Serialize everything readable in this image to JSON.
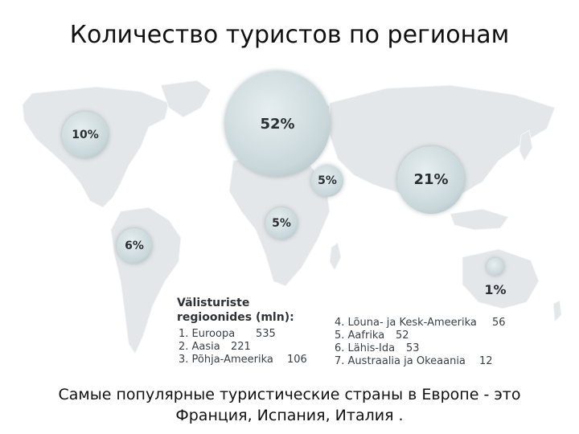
{
  "title": "Количество туристов по регионам",
  "colors": {
    "land": "#e4e7e9",
    "bubble_light": "#e6eef0",
    "bubble_dark": "#9fb3b8",
    "text": "#2a2f33"
  },
  "regions": [
    {
      "name": "Euroopa",
      "percent": "52%",
      "share": 52
    },
    {
      "name": "Aasia",
      "percent": "21%",
      "share": 21
    },
    {
      "name": "Põhja-Ameerika",
      "percent": "10%",
      "share": 10
    },
    {
      "name": "Lõuna- ja Kesk-Ameerika",
      "percent": "6%",
      "share": 6
    },
    {
      "name": "Aafrika",
      "percent": "5%",
      "share": 5
    },
    {
      "name": "Lähis-Ida",
      "percent": "5%",
      "share": 5
    },
    {
      "name": "Austraalia ja Okeaania",
      "percent": "1%",
      "share": 1
    }
  ],
  "legend": {
    "title_line1": "Välisturiste",
    "title_line2": "regioonides (mln):",
    "items": [
      {
        "label": "1. Euroopa",
        "value": "535"
      },
      {
        "label": "2. Aasia",
        "value": "221"
      },
      {
        "label": "3. Põhja-Ameerika",
        "value": "106"
      },
      {
        "label": "4. Lõuna- ja Kesk-Ameerika",
        "value": "56"
      },
      {
        "label": "5. Aafrika",
        "value": "52"
      },
      {
        "label": "6. Lähis-Ida",
        "value": "53"
      },
      {
        "label": "7. Austraalia ja Okeaania",
        "value": "12"
      }
    ]
  },
  "footer": {
    "line1": "Самые популярные туристические страны в Европе  - это",
    "line2": "Франция, Испания, Италия ."
  }
}
